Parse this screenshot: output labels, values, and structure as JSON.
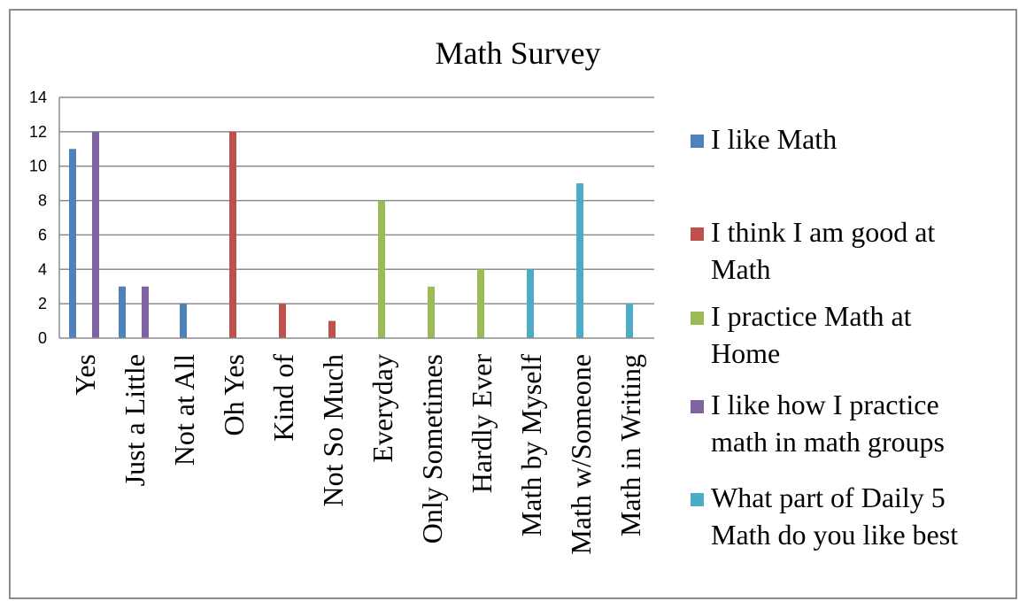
{
  "chart_data": {
    "type": "bar",
    "title": "Math Survey",
    "xlabel": "",
    "ylabel": "",
    "ylim": [
      0,
      14
    ],
    "yticks": [
      0,
      2,
      4,
      6,
      8,
      10,
      12,
      14
    ],
    "grid": true,
    "legend_position": "right",
    "categories": [
      "Yes",
      "Just a Little",
      "Not at All",
      "Oh Yes",
      "Kind of",
      "Not So Much",
      "Everyday",
      "Only Sometimes",
      "Hardly Ever",
      "Math by Myself",
      "Math w/Someone",
      "Math in Writing"
    ],
    "series": [
      {
        "name": "I like Math",
        "color": "#4f81bd",
        "values": [
          11,
          3,
          2,
          null,
          null,
          null,
          null,
          null,
          null,
          null,
          null,
          null
        ]
      },
      {
        "name": "I think I am good at Math",
        "color": "#c0504d",
        "values": [
          null,
          null,
          null,
          12,
          2,
          1,
          null,
          null,
          null,
          null,
          null,
          null
        ]
      },
      {
        "name": "I practice Math at Home",
        "color": "#9bbb59",
        "values": [
          null,
          null,
          null,
          null,
          null,
          null,
          8,
          3,
          4,
          null,
          null,
          null
        ]
      },
      {
        "name": "I like how I practice math in math groups",
        "color": "#8064a2",
        "values": [
          12,
          3,
          null,
          null,
          null,
          null,
          null,
          null,
          null,
          null,
          null,
          null
        ]
      },
      {
        "name": "What part of Daily 5 Math do you like best",
        "color": "#4bacc6",
        "values": [
          null,
          null,
          null,
          null,
          null,
          null,
          null,
          null,
          null,
          4,
          9,
          2
        ]
      }
    ],
    "legend_lines": [
      [
        "I like Math"
      ],
      [
        "I think I am good at",
        "Math"
      ],
      [
        "I practice Math at",
        "Home"
      ],
      [
        "I like how I practice",
        "math in math groups"
      ],
      [
        "What part of Daily 5",
        "Math do you like best"
      ]
    ]
  }
}
